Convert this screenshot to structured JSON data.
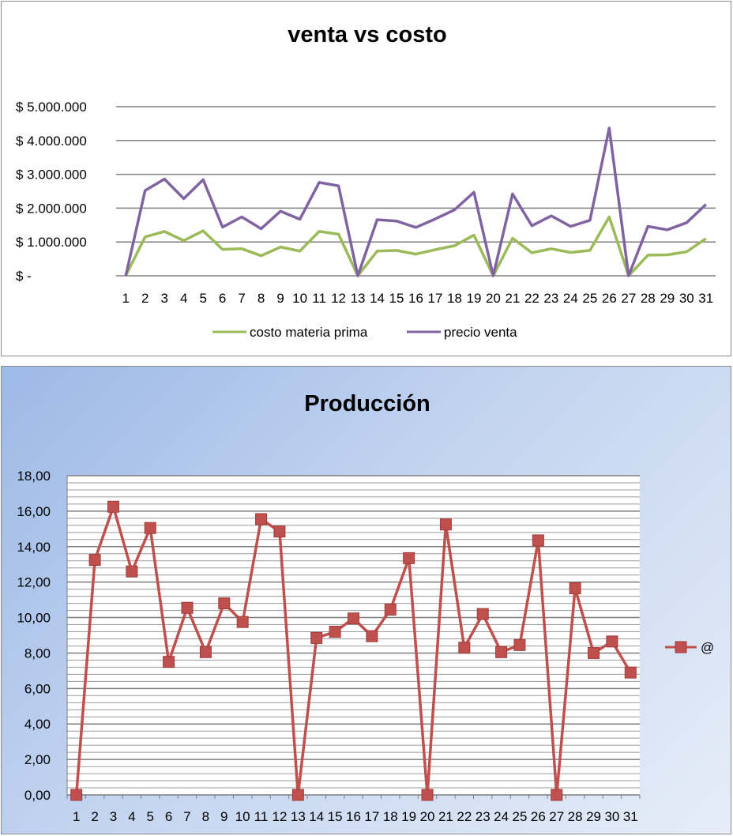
{
  "chart_data": [
    {
      "type": "line",
      "title": "venta vs costo",
      "xlabel": "",
      "ylabel": "",
      "categories": [
        "1",
        "2",
        "3",
        "4",
        "5",
        "6",
        "7",
        "8",
        "9",
        "10",
        "11",
        "12",
        "13",
        "14",
        "15",
        "16",
        "17",
        "18",
        "19",
        "20",
        "21",
        "22",
        "23",
        "24",
        "25",
        "26",
        "27",
        "28",
        "29",
        "30",
        "31"
      ],
      "ylim": [
        0,
        5000000
      ],
      "y_ticks": [
        0,
        1000000,
        2000000,
        3000000,
        4000000,
        5000000
      ],
      "y_tick_labels": [
        "$ -",
        "$ 1.000.000",
        "$ 2.000.000",
        "$ 3.000.000",
        "$ 4.000.000",
        "$ 5.000.000"
      ],
      "grid": true,
      "legend_position": "bottom",
      "series": [
        {
          "name": "costo materia prima",
          "color": "#9bbb59",
          "values": [
            0,
            1150000,
            1310000,
            1040000,
            1330000,
            780000,
            800000,
            590000,
            850000,
            730000,
            1310000,
            1230000,
            0,
            730000,
            750000,
            640000,
            770000,
            890000,
            1200000,
            0,
            1110000,
            680000,
            800000,
            690000,
            750000,
            1740000,
            0,
            610000,
            620000,
            710000,
            1100000
          ]
        },
        {
          "name": "precio venta",
          "color": "#8064a2",
          "values": [
            0,
            2520000,
            2860000,
            2280000,
            2840000,
            1440000,
            1740000,
            1390000,
            1910000,
            1670000,
            2760000,
            2660000,
            0,
            1660000,
            1620000,
            1430000,
            1680000,
            1950000,
            2470000,
            0,
            2420000,
            1480000,
            1770000,
            1460000,
            1640000,
            4370000,
            0,
            1460000,
            1360000,
            1570000,
            2110000
          ]
        }
      ]
    },
    {
      "type": "line",
      "title": "Producción",
      "xlabel": "",
      "ylabel": "",
      "categories": [
        "1",
        "2",
        "3",
        "4",
        "5",
        "6",
        "7",
        "8",
        "9",
        "10",
        "11",
        "12",
        "13",
        "14",
        "15",
        "16",
        "17",
        "18",
        "19",
        "20",
        "21",
        "22",
        "23",
        "24",
        "25",
        "26",
        "27",
        "28",
        "29",
        "30",
        "31"
      ],
      "ylim": [
        0,
        18
      ],
      "y_ticks": [
        0,
        2,
        4,
        6,
        8,
        10,
        12,
        14,
        16,
        18
      ],
      "y_tick_labels": [
        "0,00",
        "2,00",
        "4,00",
        "6,00",
        "8,00",
        "10,00",
        "12,00",
        "14,00",
        "16,00",
        "18,00"
      ],
      "grid": true,
      "minor_grid": true,
      "legend_position": "right",
      "series": [
        {
          "name": "@",
          "color": "#c0504d",
          "marker": "square",
          "values": [
            0,
            13.25,
            16.25,
            12.6,
            15.05,
            7.5,
            10.55,
            8.05,
            10.8,
            9.75,
            15.55,
            14.85,
            0,
            8.85,
            9.2,
            9.95,
            8.95,
            10.45,
            13.35,
            0,
            15.25,
            8.3,
            10.2,
            8.05,
            8.45,
            14.35,
            0,
            11.65,
            8.0,
            8.65,
            6.9
          ]
        }
      ]
    }
  ]
}
